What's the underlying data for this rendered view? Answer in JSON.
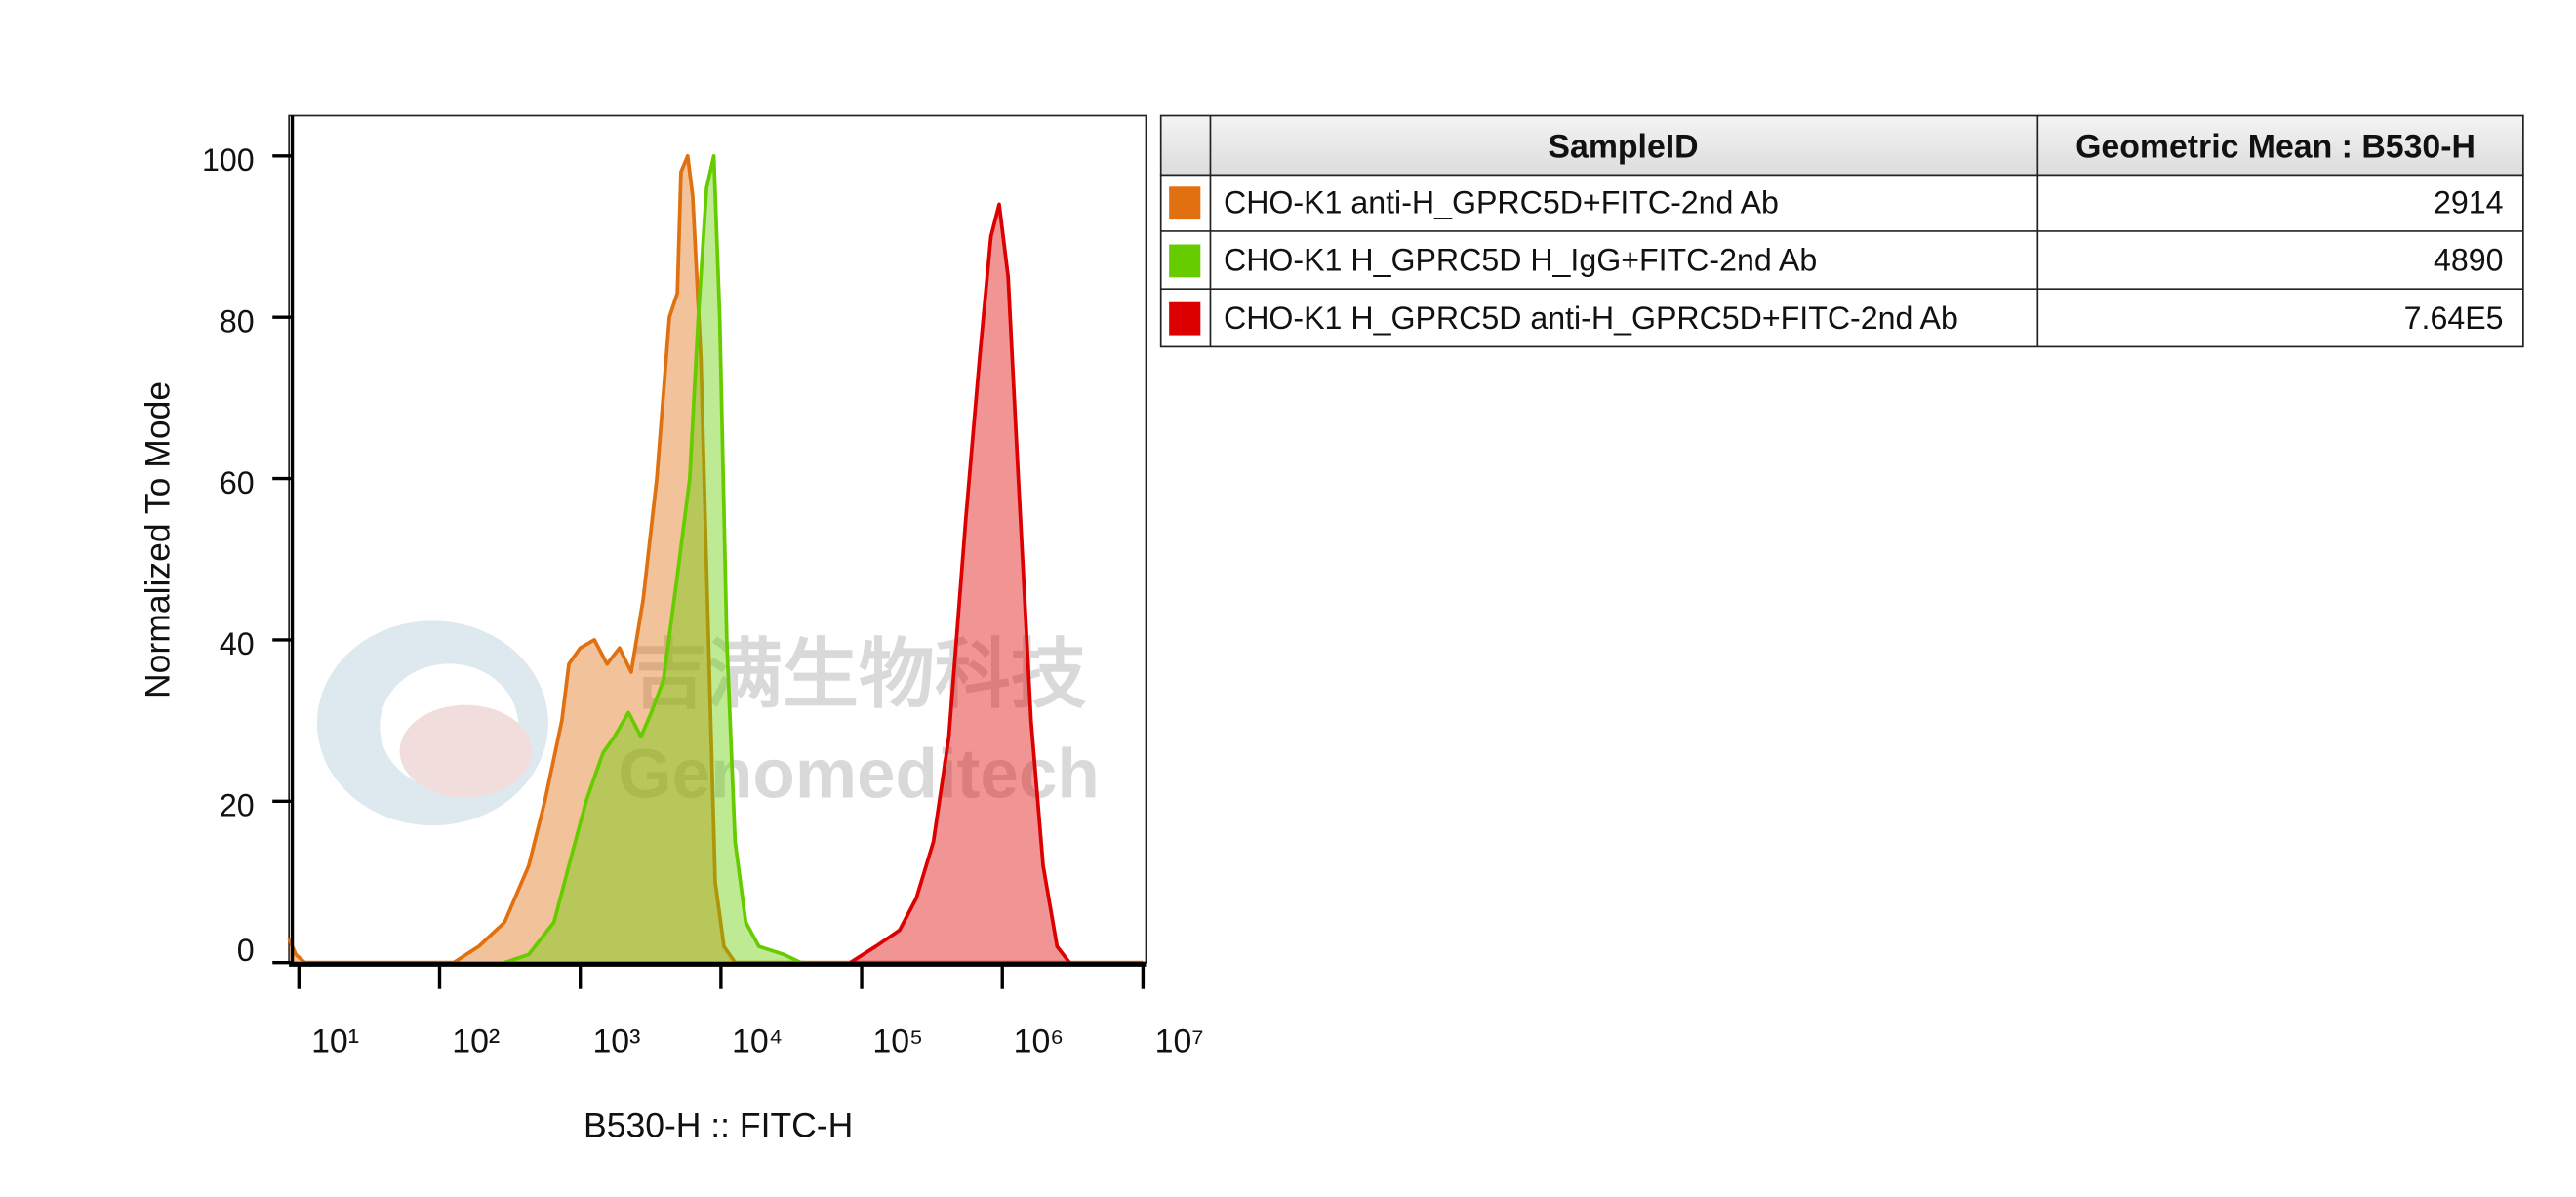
{
  "chart_data": {
    "type": "histogram-overlay",
    "x_label": "B530-H :: FITC-H",
    "y_label": "Normalized To Mode",
    "xscale": "log",
    "xlim": [
      8.5,
      10500000
    ],
    "xticks": [
      {
        "value": 10,
        "label": "10¹"
      },
      {
        "value": 100,
        "label": "10²"
      },
      {
        "value": 1000,
        "label": "10³"
      },
      {
        "value": 10000,
        "label": "10⁴"
      },
      {
        "value": 100000,
        "label": "10⁵"
      },
      {
        "value": 1000000,
        "label": "10⁶"
      },
      {
        "value": 10000000,
        "label": "10⁷"
      }
    ],
    "ylim": [
      0,
      105
    ],
    "yticks": [
      0,
      20,
      40,
      60,
      80,
      100
    ],
    "series": [
      {
        "name": "CHO-K1 anti-H_GPRC5D+FITC-2nd Ab",
        "color": "#e07010",
        "x": [
          8.5,
          9.5,
          11,
          126,
          190,
          290,
          430,
          560,
          740,
          830,
          1000,
          1260,
          1550,
          1900,
          2300,
          2800,
          3500,
          4300,
          4900,
          5200,
          5800,
          6300,
          7200,
          8300,
          9100,
          10500,
          12600,
          10000000
        ],
        "values": [
          3,
          1,
          0,
          0,
          2,
          5,
          12,
          20,
          30,
          37,
          39,
          40,
          37,
          39,
          36,
          45,
          60,
          80,
          83,
          98,
          100,
          95,
          75,
          35,
          10,
          2,
          0,
          0
        ]
      },
      {
        "name": "CHO-K1 H_GPRC5D H_IgG+FITC-2nd Ab",
        "color": "#66cc00",
        "x": [
          290,
          430,
          650,
          830,
          1100,
          1450,
          1750,
          2200,
          2700,
          3200,
          3900,
          4900,
          6000,
          6900,
          7900,
          8900,
          9800,
          11000,
          12600,
          15000,
          18600,
          28000,
          37000
        ],
        "values": [
          0,
          1,
          5,
          12,
          20,
          26,
          28,
          31,
          28,
          31,
          35,
          48,
          60,
          80,
          96,
          100,
          80,
          40,
          15,
          5,
          2,
          1,
          0
        ]
      },
      {
        "name": "CHO-K1 H_GPRC5D anti-H_GPRC5D+FITC-2nd Ab",
        "color": "#dd0000",
        "x": [
          83000,
          126000,
          186000,
          245000,
          324000,
          417000,
          550000,
          690000,
          830000,
          950000,
          1100000,
          1300000,
          1600000,
          1950000,
          2450000,
          3000000
        ],
        "values": [
          0,
          2,
          4,
          8,
          15,
          28,
          55,
          75,
          90,
          94,
          85,
          60,
          30,
          12,
          2,
          0
        ]
      }
    ],
    "table": {
      "columns": [
        "SampleID",
        "Geometric Mean : B530-H"
      ],
      "values": [
        "2914",
        "4890",
        "7.64E5"
      ]
    },
    "watermark": [
      "吉满生物科技",
      "Genomeditech"
    ]
  }
}
